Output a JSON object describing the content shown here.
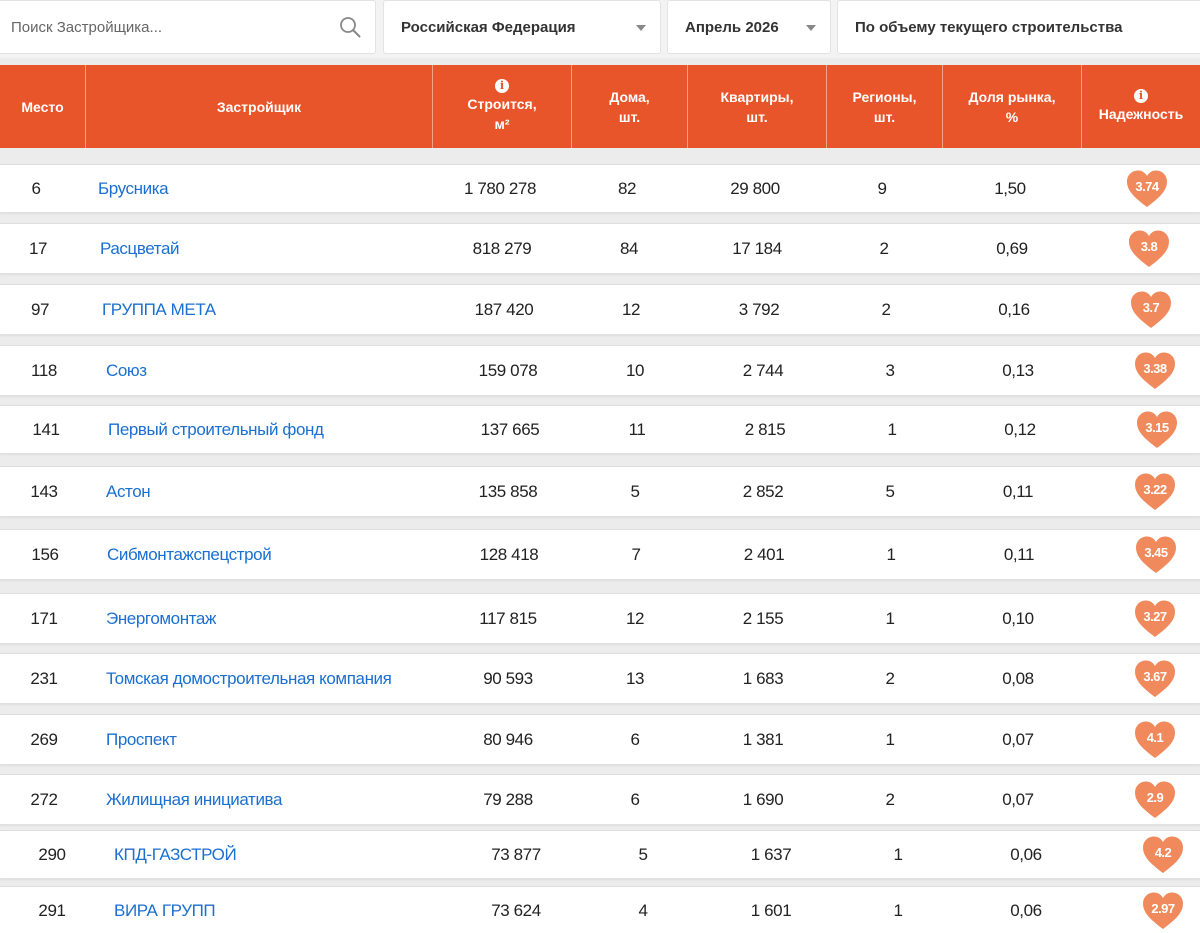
{
  "filters": {
    "search_placeholder": "Поиск Застройщика...",
    "region": "Российская Федерация",
    "month": "Апрель 2026",
    "sort": "По объему текущего строительства"
  },
  "columns": {
    "place": "Место",
    "developer": "Застройщик",
    "area_l1": "Строится,",
    "area_l2": "м²",
    "houses_l1": "Дома,",
    "houses_l2": "шт.",
    "flats_l1": "Квартиры,",
    "flats_l2": "шт.",
    "regions_l1": "Регионы,",
    "regions_l2": "шт.",
    "share_l1": "Доля рынка,",
    "share_l2": "%",
    "reliability": "Надежность",
    "info_icon": "i"
  },
  "colors": {
    "accent": "#e8552a",
    "link": "#1a6fd0",
    "heart": "#f08a5d"
  },
  "rows": [
    {
      "place": "6",
      "name": "Брусника",
      "area": "1 780 278",
      "houses": "82",
      "flats": "29 800",
      "regions": "9",
      "share": "1,50",
      "rating": "3.74"
    },
    {
      "place": "17",
      "name": "Расцветай",
      "area": "818 279",
      "houses": "84",
      "flats": "17 184",
      "regions": "2",
      "share": "0,69",
      "rating": "3.8"
    },
    {
      "place": "97",
      "name": "ГРУППА МЕТА",
      "area": "187 420",
      "houses": "12",
      "flats": "3 792",
      "regions": "2",
      "share": "0,16",
      "rating": "3.7"
    },
    {
      "place": "118",
      "name": "Союз",
      "area": "159 078",
      "houses": "10",
      "flats": "2 744",
      "regions": "3",
      "share": "0,13",
      "rating": "3.38"
    },
    {
      "place": "141",
      "name": "Первый строительный фонд",
      "area": "137 665",
      "houses": "11",
      "flats": "2 815",
      "regions": "1",
      "share": "0,12",
      "rating": "3.15"
    },
    {
      "place": "143",
      "name": "Астон",
      "area": "135 858",
      "houses": "5",
      "flats": "2 852",
      "regions": "5",
      "share": "0,11",
      "rating": "3.22"
    },
    {
      "place": "156",
      "name": "Сибмонтажспецстрой",
      "area": "128 418",
      "houses": "7",
      "flats": "2 401",
      "regions": "1",
      "share": "0,11",
      "rating": "3.45"
    },
    {
      "place": "171",
      "name": "Энергомонтаж",
      "area": "117 815",
      "houses": "12",
      "flats": "2 155",
      "regions": "1",
      "share": "0,10",
      "rating": "3.27"
    },
    {
      "place": "231",
      "name": "Томская домостроительная компания",
      "area": "90 593",
      "houses": "13",
      "flats": "1 683",
      "regions": "2",
      "share": "0,08",
      "rating": "3.67"
    },
    {
      "place": "269",
      "name": "Проспект",
      "area": "80 946",
      "houses": "6",
      "flats": "1 381",
      "regions": "1",
      "share": "0,07",
      "rating": "4.1"
    },
    {
      "place": "272",
      "name": "Жилищная инициатива",
      "area": "79 288",
      "houses": "6",
      "flats": "1 690",
      "regions": "2",
      "share": "0,07",
      "rating": "2.9"
    },
    {
      "place": "290",
      "name": "КПД-ГАЗСТРОЙ",
      "area": "73 877",
      "houses": "5",
      "flats": "1 637",
      "regions": "1",
      "share": "0,06",
      "rating": "4.2"
    },
    {
      "place": "291",
      "name": "ВИРА ГРУПП",
      "area": "73 624",
      "houses": "4",
      "flats": "1 601",
      "regions": "1",
      "share": "0,06",
      "rating": "2.97"
    }
  ]
}
